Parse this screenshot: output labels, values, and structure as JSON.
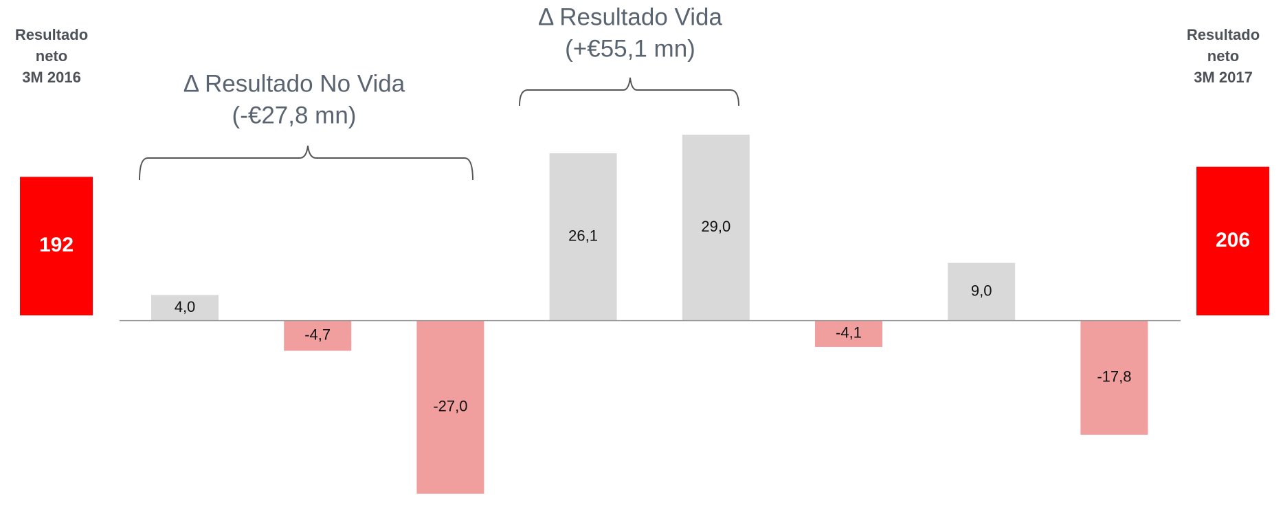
{
  "chart_data": {
    "type": "bar",
    "categories": [
      null,
      null,
      null,
      null,
      null,
      null,
      null,
      null
    ],
    "values": [
      4.0,
      -4.7,
      -27.0,
      26.1,
      29.0,
      -4.1,
      9.0,
      -17.8
    ],
    "value_labels": [
      "4,0",
      "-4,7",
      "-27,0",
      "26,1",
      "29,0",
      "-4,1",
      "9,0",
      "-17,8"
    ],
    "positive_color": "#d9d9d9",
    "negative_color": "#f09e9e",
    "ylim": [
      -28,
      50
    ],
    "totals": [
      {
        "label": [
          "Resultado",
          "neto",
          "3M 2016"
        ],
        "value": 192,
        "color": "#ff0000"
      },
      {
        "label": [
          "Resultado",
          "neto",
          "3M 2017"
        ],
        "value": 206,
        "color": "#ff0000"
      }
    ],
    "annotations": [
      {
        "text": [
          "Δ Resultado No Vida",
          "(-€27,8 mn)"
        ]
      },
      {
        "text": [
          "Δ Resultado Vida",
          "(+€55,1 mn)"
        ]
      }
    ]
  }
}
